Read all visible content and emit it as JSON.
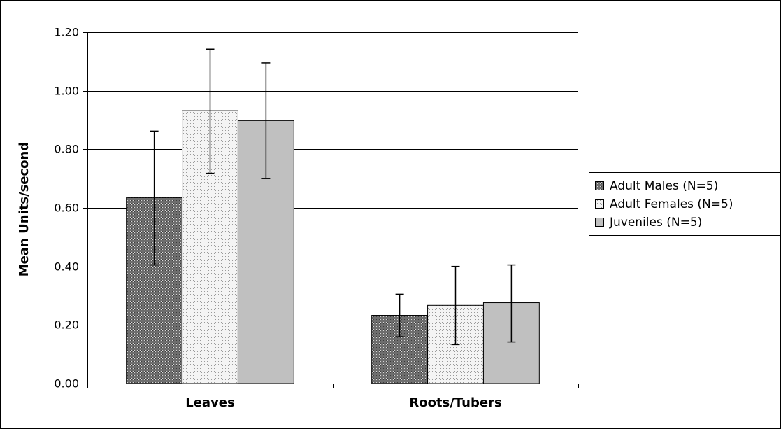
{
  "chart_data": {
    "type": "bar",
    "title": "",
    "xlabel": "",
    "ylabel": "Mean Units/second",
    "ylim": [
      0,
      1.2
    ],
    "yticks": [
      "0.00",
      "0.20",
      "0.40",
      "0.60",
      "0.80",
      "1.00",
      "1.20"
    ],
    "categories": [
      "Leaves",
      "Roots/Tubers"
    ],
    "series": [
      {
        "name": "Adult Males (N=5)",
        "values": [
          0.635,
          0.233
        ],
        "error_low": [
          0.405,
          0.16
        ],
        "error_high": [
          0.862,
          0.305
        ],
        "fill": "crosshatch-dark"
      },
      {
        "name": "Adult Females (N=5)",
        "values": [
          0.932,
          0.267
        ],
        "error_low": [
          0.718,
          0.133
        ],
        "error_high": [
          1.142,
          0.4
        ],
        "fill": "dotted-light"
      },
      {
        "name": "Juveniles (N=5)",
        "values": [
          0.898,
          0.276
        ],
        "error_low": [
          0.7,
          0.142
        ],
        "error_high": [
          1.095,
          0.405
        ],
        "fill": "solid-gray"
      }
    ],
    "grid": true,
    "legend_position": "right",
    "colors": {
      "solid_gray": "#c0c0c0",
      "dark_base": "#6e6e6e",
      "light_base": "#f4f4f4"
    }
  }
}
